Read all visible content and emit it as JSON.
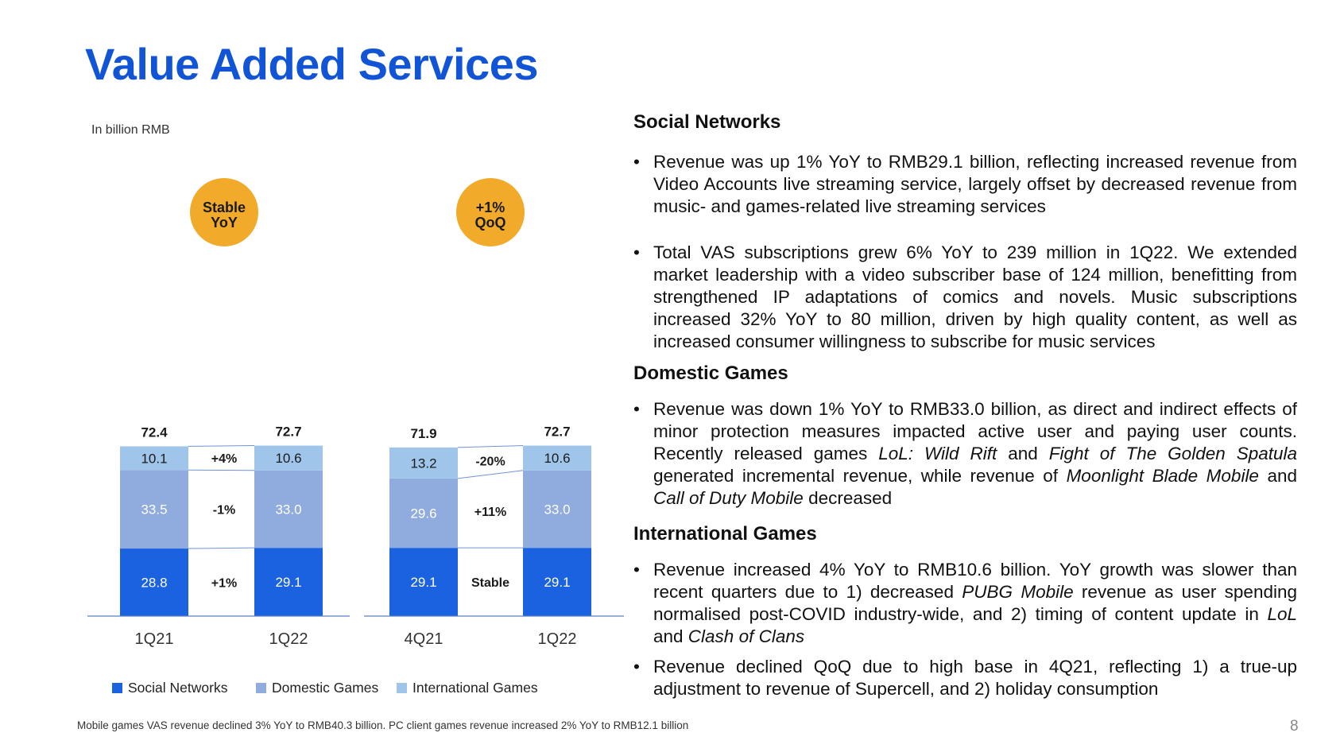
{
  "page": {
    "title": "Value Added Services",
    "unit": "In billion RMB",
    "footnote": "Mobile games VAS revenue declined 3% YoY to RMB40.3 billion. PC client games revenue increased 2% YoY to RMB12.1 billion",
    "page_number": "8"
  },
  "colors": {
    "title": "#1155d6",
    "social": "#1a62e0",
    "domestic": "#90acdf",
    "international": "#9fc5ea",
    "badge": "#f2aa2a"
  },
  "chart_data": [
    {
      "type": "bar",
      "stacked": true,
      "badge": [
        "Stable",
        "YoY"
      ],
      "categories": [
        "1Q21",
        "1Q22"
      ],
      "totals": [
        "72.4",
        "72.7"
      ],
      "series": [
        {
          "name": "Social Networks",
          "values": [
            28.8,
            29.1
          ],
          "change": "+1%"
        },
        {
          "name": "Domestic Games",
          "values": [
            33.5,
            33.0
          ],
          "change": "-1%"
        },
        {
          "name": "International Games",
          "values": [
            10.1,
            10.6
          ],
          "change": "+4%"
        }
      ]
    },
    {
      "type": "bar",
      "stacked": true,
      "badge": [
        "+1%",
        "QoQ"
      ],
      "categories": [
        "4Q21",
        "1Q22"
      ],
      "totals": [
        "71.9",
        "72.7"
      ],
      "series": [
        {
          "name": "Social Networks",
          "values": [
            29.1,
            29.1
          ],
          "change": "Stable"
        },
        {
          "name": "Domestic Games",
          "values": [
            29.6,
            33.0
          ],
          "change": "+11%"
        },
        {
          "name": "International Games",
          "values": [
            13.2,
            10.6
          ],
          "change": "-20%"
        }
      ]
    }
  ],
  "legend": {
    "social": "Social Networks",
    "domestic": "Domestic Games",
    "international": "International Games"
  },
  "social": {
    "heading": "Social Networks",
    "b1": "Revenue was up 1% YoY to RMB29.1 billion, reflecting increased revenue from Video Accounts live streaming service, largely offset by decreased revenue from music- and games-related live streaming services",
    "b2": "Total VAS subscriptions grew 6% YoY to 239 million in 1Q22. We extended market leadership with a video subscriber base of 124 million, benefitting from strengthened IP adaptations of comics and novels. Music subscriptions increased 32% YoY to 80 million, driven by high quality content, as well as increased consumer willingness to subscribe for music services"
  },
  "domestic": {
    "heading": "Domestic Games",
    "t1": "Revenue was down 1% YoY to RMB33.0 billion, as direct and indirect effects of minor protection measures impacted active user and paying user counts. Recently released games ",
    "g1": "LoL: Wild Rift",
    "t2": " and ",
    "g2": "Fight of The Golden Spatula",
    "t3": " generated incremental revenue, while revenue of ",
    "g3": "Moonlight Blade Mobile",
    "t4": " and ",
    "g4": "Call of Duty Mobile",
    "t5": " decreased"
  },
  "international": {
    "heading": "International Games",
    "t1": "Revenue increased 4% YoY to RMB10.6 billion. YoY growth was slower than recent quarters due to 1) decreased ",
    "g1": "PUBG Mobile",
    "t2": " revenue as user spending normalised post-COVID industry-wide, and 2) timing of content update in ",
    "g2": "LoL",
    "t3": " and ",
    "g3": "Clash of Clans",
    "b2": "Revenue declined QoQ due to high base in 4Q21, reflecting 1) a true-up adjustment to revenue of Supercell, and 2) holiday consumption"
  }
}
